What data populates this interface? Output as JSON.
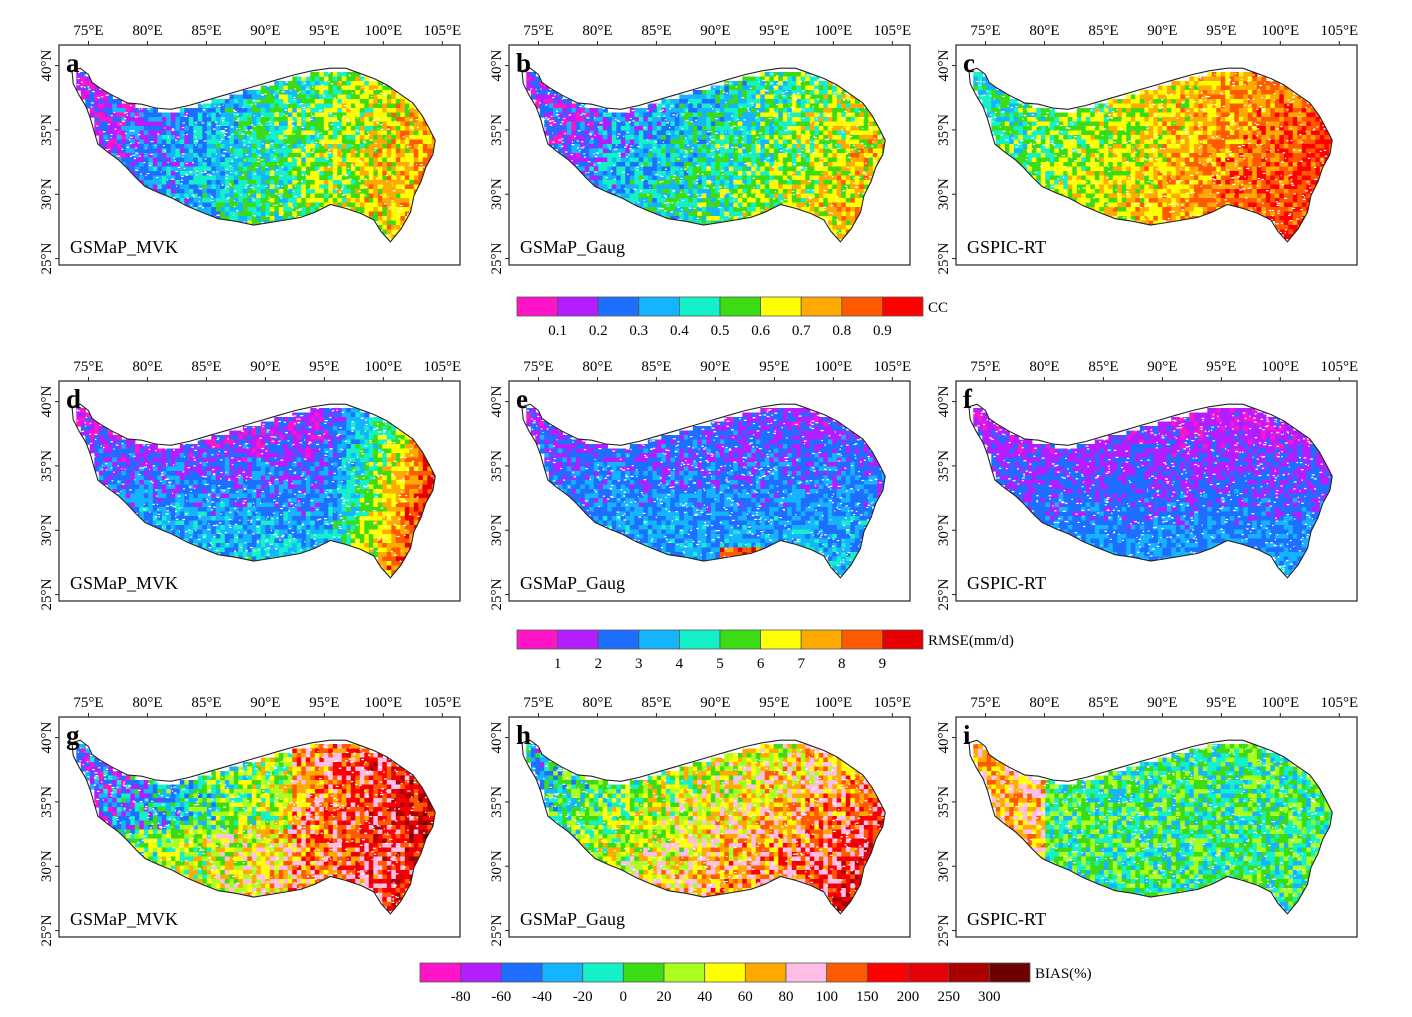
{
  "map": {
    "lon_labels": [
      "75°E",
      "80°E",
      "85°E",
      "90°E",
      "95°E",
      "100°E",
      "105°E"
    ],
    "lat_labels": [
      "40°N",
      "35°N",
      "30°N",
      "25°N"
    ],
    "panels": [
      {
        "letter": "a",
        "product": "GSMaP_MVK",
        "metric": "cc"
      },
      {
        "letter": "b",
        "product": "GSMaP_Gaug",
        "metric": "cc"
      },
      {
        "letter": "c",
        "product": "GSPIC-RT",
        "metric": "cc"
      },
      {
        "letter": "d",
        "product": "GSMaP_MVK",
        "metric": "rmse"
      },
      {
        "letter": "e",
        "product": "GSMaP_Gaug",
        "metric": "rmse"
      },
      {
        "letter": "f",
        "product": "GSPIC-RT",
        "metric": "rmse"
      },
      {
        "letter": "g",
        "product": "GSMaP_MVK",
        "metric": "bias"
      },
      {
        "letter": "h",
        "product": "GSMaP_Gaug",
        "metric": "bias"
      },
      {
        "letter": "i",
        "product": "GSPIC-RT",
        "metric": "bias"
      }
    ],
    "colorbars": {
      "cc": {
        "title": "CC",
        "colors": [
          "#ff14c8",
          "#b41eff",
          "#1e6eff",
          "#14b4ff",
          "#14f0c8",
          "#3cdc14",
          "#ffff00",
          "#ffaa00",
          "#ff5a00",
          "#ff0000"
        ],
        "labels": [
          "0.1",
          "0.2",
          "0.3",
          "0.4",
          "0.5",
          "0.6",
          "0.7",
          "0.8",
          "0.9"
        ]
      },
      "rmse": {
        "title": "RMSE(mm/d)",
        "colors": [
          "#ff14c8",
          "#b41eff",
          "#1e6eff",
          "#14b4ff",
          "#14f0c8",
          "#3cdc14",
          "#ffff00",
          "#ffaa00",
          "#ff5a00",
          "#e60000"
        ],
        "labels": [
          "1",
          "2",
          "3",
          "4",
          "5",
          "6",
          "7",
          "8",
          "9"
        ]
      },
      "bias": {
        "title": "BIAS(%)",
        "colors": [
          "#ff14c8",
          "#b41eff",
          "#1e6eff",
          "#14b4ff",
          "#14f0c8",
          "#3cdc14",
          "#aaff1e",
          "#ffff00",
          "#ffaa00",
          "#ffbee6",
          "#ff5a00",
          "#ff0000",
          "#e6000a",
          "#aa0000",
          "#6e0000"
        ],
        "labels": [
          "-80",
          "-60",
          "-40",
          "-20",
          "0",
          "20",
          "40",
          "60",
          "80",
          "100",
          "150",
          "200",
          "250",
          "300"
        ]
      }
    }
  }
}
